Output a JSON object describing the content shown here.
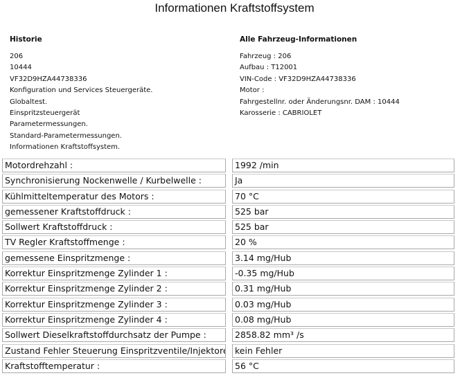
{
  "title": "Informationen Kraftstoffsystem",
  "history": {
    "heading": "Historie",
    "lines": [
      "206",
      "10444",
      "VF32D9HZA44738336",
      "Konfiguration und Services Steuergeräte.",
      "Globaltest.",
      "Einspritzsteuergerät",
      "Parametermessungen.",
      "Standard-Parametermessungen.",
      "Informationen Kraftstoffsystem."
    ]
  },
  "vehicle": {
    "heading": "Alle Fahrzeug-Informationen",
    "lines": [
      "Fahrzeug  :  206",
      "Aufbau  :  T12001",
      "VIN-Code  :  VF32D9HZA44738336",
      "Motor  :",
      "Fahrgestellnr. oder Änderungsnr. DAM  :  10444",
      "Karosserie  :  CABRIOLET"
    ]
  },
  "params": [
    {
      "label": "Motordrehzahl :",
      "value": "1992 /min"
    },
    {
      "label": "Synchronisierung Nockenwelle / Kurbelwelle :",
      "value": "Ja"
    },
    {
      "label": "Kühlmitteltemperatur des Motors :",
      "value": "70  °C"
    },
    {
      "label": "gemessener Kraftstoffdruck :",
      "value": "525  bar"
    },
    {
      "label": "Sollwert Kraftstoffdruck  :",
      "value": "525  bar"
    },
    {
      "label": "TV Regler Kraftstoffmenge :",
      "value": "20  %"
    },
    {
      "label": "gemessene Einspritzmenge :",
      "value": "3.14  mg/Hub"
    },
    {
      "label": "Korrektur Einspritzmenge Zylinder 1 :",
      "value": "-0.35  mg/Hub"
    },
    {
      "label": "Korrektur Einspritzmenge Zylinder 2 :",
      "value": "0.31  mg/Hub"
    },
    {
      "label": "Korrektur Einspritzmenge Zylinder 3 :",
      "value": "0.03  mg/Hub"
    },
    {
      "label": "Korrektur Einspritzmenge Zylinder 4 :",
      "value": "0.08  mg/Hub"
    },
    {
      "label": "Sollwert Dieselkraftstoffdurchsatz der Pumpe :",
      "value": "2858.82 mm³ /s"
    },
    {
      "label": "Zustand Fehler Steuerung Einspritzventile/Injektoren :",
      "value": "kein Fehler"
    },
    {
      "label": "Kraftstofftemperatur  :",
      "value": "56  °C"
    }
  ]
}
